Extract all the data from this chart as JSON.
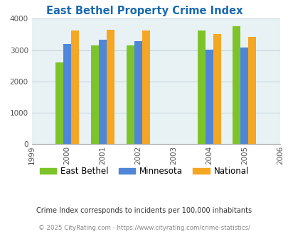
{
  "title": "East Bethel Property Crime Index",
  "years": [
    1999,
    2000,
    2001,
    2002,
    2003,
    2004,
    2005,
    2006
  ],
  "data_years": [
    2000,
    2001,
    2002,
    2004,
    2005
  ],
  "east_bethel": [
    2600,
    3150,
    3150,
    3620,
    3760
  ],
  "minnesota": [
    3200,
    3330,
    3280,
    3020,
    3080
  ],
  "national": [
    3620,
    3650,
    3620,
    3510,
    3420
  ],
  "bar_colors": {
    "east_bethel": "#7dc42a",
    "minnesota": "#4f86d8",
    "national": "#f5a623"
  },
  "ylim": [
    0,
    4000
  ],
  "yticks": [
    0,
    1000,
    2000,
    3000,
    4000
  ],
  "bar_width": 0.22,
  "bg_color": "#e8f2f5",
  "legend_labels": [
    "East Bethel",
    "Minnesota",
    "National"
  ],
  "footnote1": "Crime Index corresponds to incidents per 100,000 inhabitants",
  "footnote2": "© 2025 CityRating.com - https://www.cityrating.com/crime-statistics/",
  "title_color": "#1a6ab0",
  "grid_color": "#c8d8e0"
}
